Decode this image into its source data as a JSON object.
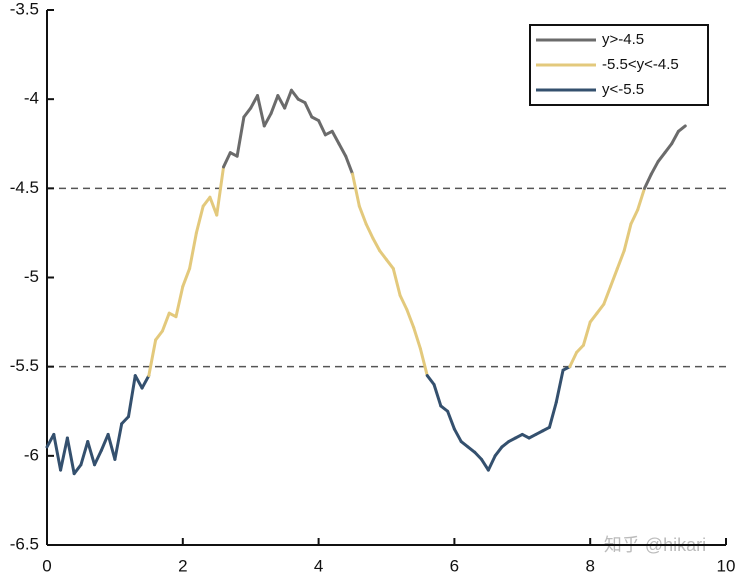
{
  "chart_data": {
    "type": "line",
    "x": [
      0,
      0.1,
      0.2,
      0.3,
      0.4,
      0.5,
      0.6,
      0.7,
      0.8,
      0.9,
      1,
      1.1,
      1.2,
      1.3,
      1.4,
      1.5,
      1.6,
      1.7,
      1.8,
      1.9,
      2,
      2.1,
      2.2,
      2.3,
      2.4,
      2.5,
      2.6,
      2.7,
      2.8,
      2.9,
      3,
      3.1,
      3.2,
      3.3,
      3.4,
      3.5,
      3.6,
      3.7,
      3.8,
      3.9,
      4,
      4.1,
      4.2,
      4.3,
      4.4,
      4.5,
      4.6,
      4.7,
      4.8,
      4.9,
      5,
      5.1,
      5.2,
      5.3,
      5.4,
      5.5,
      5.6,
      5.7,
      5.8,
      5.9,
      6,
      6.1,
      6.2,
      6.3,
      6.4,
      6.5,
      6.6,
      6.7,
      6.8,
      6.9,
      7,
      7.1,
      7.2,
      7.3,
      7.4,
      7.5,
      7.6,
      7.7,
      7.8,
      7.9,
      8,
      8.1,
      8.2,
      8.3,
      8.4,
      8.5,
      8.6,
      8.7,
      8.8,
      8.9,
      9,
      9.1,
      9.2,
      9.3,
      9.4
    ],
    "values": [
      -5.95,
      -5.88,
      -6.08,
      -5.9,
      -6.1,
      -6.05,
      -5.92,
      -6.05,
      -5.97,
      -5.88,
      -6.02,
      -5.82,
      -5.78,
      -5.55,
      -5.62,
      -5.55,
      -5.35,
      -5.3,
      -5.2,
      -5.22,
      -5.05,
      -4.95,
      -4.75,
      -4.6,
      -4.55,
      -4.65,
      -4.38,
      -4.3,
      -4.32,
      -4.1,
      -4.05,
      -3.98,
      -4.15,
      -4.08,
      -3.98,
      -4.05,
      -3.95,
      -4.0,
      -4.02,
      -4.1,
      -4.12,
      -4.2,
      -4.18,
      -4.25,
      -4.32,
      -4.42,
      -4.6,
      -4.7,
      -4.78,
      -4.85,
      -4.9,
      -4.95,
      -5.1,
      -5.18,
      -5.28,
      -5.4,
      -5.55,
      -5.6,
      -5.72,
      -5.75,
      -5.85,
      -5.92,
      -5.95,
      -5.98,
      -6.02,
      -6.08,
      -6.0,
      -5.95,
      -5.92,
      -5.9,
      -5.88,
      -5.9,
      -5.88,
      -5.86,
      -5.84,
      -5.7,
      -5.52,
      -5.5,
      -5.42,
      -5.38,
      -5.25,
      -5.2,
      -5.15,
      -5.05,
      -4.95,
      -4.85,
      -4.7,
      -4.62,
      -4.5,
      -4.42,
      -4.35,
      -4.3,
      -4.25,
      -4.18,
      -4.15
    ],
    "thresholds": [
      -4.5,
      -5.5
    ],
    "series": [
      {
        "name": "y>-4.5",
        "color": "#6b6b6b"
      },
      {
        "name": "-5.5<y<-4.5",
        "color": "#e3c97c"
      },
      {
        "name": "y<-5.5",
        "color": "#34506e"
      }
    ],
    "xlim": [
      0,
      10
    ],
    "xticks": [
      0,
      2,
      4,
      6,
      8,
      10
    ],
    "ylim": [
      -6.5,
      -3.5
    ],
    "yticks": [
      -6.5,
      -6,
      -5.5,
      -5,
      -4.5,
      -4,
      -3.5
    ],
    "legend": "upper right",
    "watermark": "知乎 @hikari"
  }
}
